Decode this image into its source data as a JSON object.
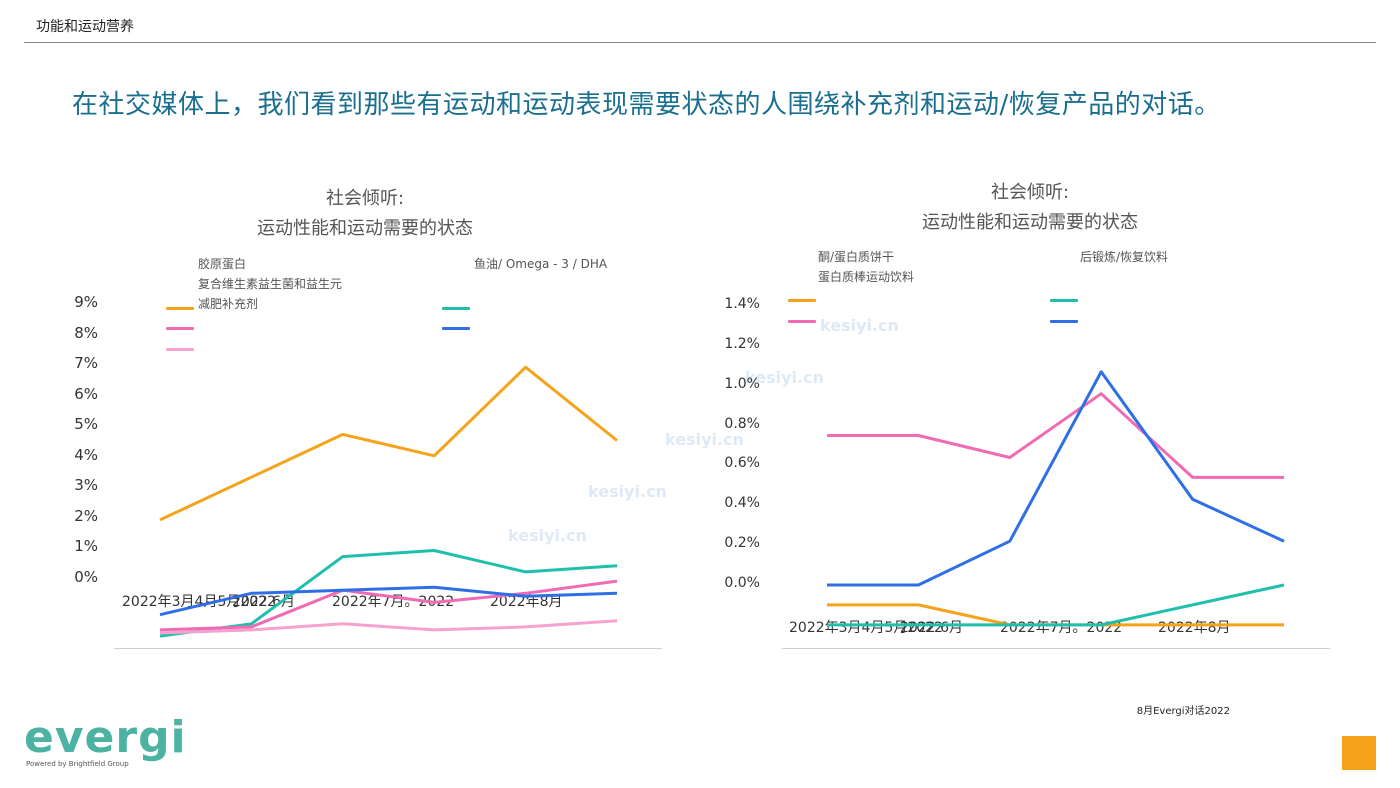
{
  "header": {
    "section": "功能和运动营养",
    "headline": "在社交媒体上，我们看到那些有运动和运动表现需要状态的人围绕补充剂和运动/恢复产品的对话。"
  },
  "footer": {
    "note": "8月Evergi对话2022",
    "logo_word": "evergi",
    "logo_sub": "Powered by Brightfield Group"
  },
  "watermark": "kesiyi.cn",
  "chart_data": [
    {
      "type": "line",
      "title_line1": "社会倾听:",
      "title_line2": "运动性能和运动需要的状态",
      "y_tick_labels": [
        "9%",
        "8%",
        "7%",
        "6%",
        "5%",
        "4%",
        "3%",
        "2%",
        "1%",
        "0%"
      ],
      "x_tick_labels": [
        "2022年3月4月5月2022",
        "2022  6月",
        "2022年7月。2022",
        "2022年8月"
      ],
      "legend_left": [
        "胶原蛋白",
        "复合维生素益生菌和益生元",
        "减肥补充剂"
      ],
      "legend_right": [
        "鱼油/ Omega - 3 / DHA"
      ],
      "series": [
        {
          "color": "#f5a31a",
          "values": [
            1.9,
            3.3,
            4.7,
            4.0,
            6.9,
            4.5
          ]
        },
        {
          "color": "#1fbfae",
          "values": [
            -1.9,
            -1.5,
            0.7,
            0.9,
            0.2,
            0.4
          ]
        },
        {
          "color": "#f06ab4",
          "values": [
            -1.7,
            -1.6,
            -0.4,
            -0.8,
            -0.5,
            -0.1
          ]
        },
        {
          "color": "#2f6fe6",
          "values": [
            -1.2,
            -0.5,
            -0.4,
            -0.3,
            -0.6,
            -0.5
          ]
        },
        {
          "color": "#f7a1cf",
          "values": [
            -1.8,
            -1.7,
            -1.5,
            -1.7,
            -1.6,
            -1.4
          ]
        }
      ]
    },
    {
      "type": "line",
      "title_line1": "社会倾听:",
      "title_line2": "运动性能和运动需要的状态",
      "y_tick_labels": [
        "1.4%",
        "1.2%",
        "1.0%",
        "0.8%",
        "0.6%",
        "0.4%",
        "0.2%",
        "0.0%"
      ],
      "x_tick_labels": [
        "2022年3月4月5月2022",
        "2022  6月",
        "2022年7月。2022",
        "2022年8月"
      ],
      "legend_left": [
        "酮/蛋白质饼干",
        "蛋白质棒运动饮料"
      ],
      "legend_right": [
        "后锻炼/恢复饮料"
      ],
      "series": [
        {
          "color": "#f5a31a",
          "values": [
            -0.1,
            -0.1,
            -0.2,
            -0.2,
            -0.2,
            -0.2
          ]
        },
        {
          "color": "#f06ab4",
          "values": [
            0.75,
            0.75,
            0.64,
            0.96,
            0.54,
            0.54
          ]
        },
        {
          "color": "#1fbfae",
          "values": [
            -0.2,
            -0.2,
            -0.2,
            -0.2,
            -0.1,
            0.0
          ]
        },
        {
          "color": "#2f6fe6",
          "values": [
            0.0,
            0.0,
            0.22,
            1.07,
            0.43,
            0.22
          ]
        }
      ]
    }
  ]
}
